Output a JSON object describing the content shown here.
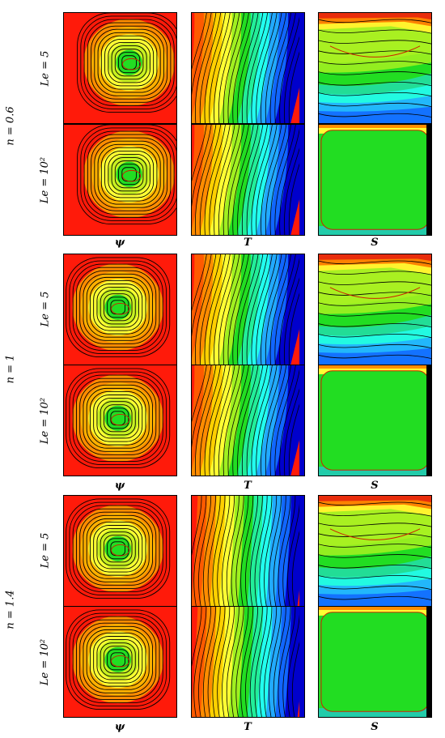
{
  "figure": {
    "groups": [
      {
        "label": "n = 0.6",
        "rows": [
          "Le = 5",
          "Le = 10²"
        ],
        "cols": [
          "ψ",
          "T",
          "S"
        ]
      },
      {
        "label": "n = 1",
        "rows": [
          "Le = 5",
          "Le = 10²"
        ],
        "cols": [
          "ψ",
          "T",
          "S"
        ]
      },
      {
        "label": "n = 1.4",
        "rows": [
          "Le = 5",
          "Le = 10²"
        ],
        "cols": [
          "ψ",
          "T",
          "S"
        ]
      }
    ],
    "colors": {
      "red": "#ff1a0a",
      "orange": "#ff8c00",
      "yellow": "#ffff33",
      "green": "#22dd22",
      "cyan": "#22ffee",
      "blue": "#1166ff",
      "navy": "#0000cc",
      "contour": "#000000",
      "red_contour": "#cc2200"
    }
  }
}
